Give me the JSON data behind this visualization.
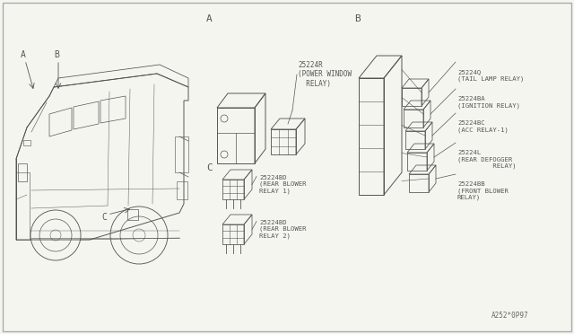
{
  "bg_color": "#f5f5f0",
  "line_color": "#555555",
  "watermark": "A252*0P97",
  "van": {
    "label_A": [
      0.055,
      0.865
    ],
    "label_B": [
      0.095,
      0.865
    ],
    "label_C": [
      0.175,
      0.335
    ]
  },
  "sec_A": {
    "label": [
      0.355,
      0.935
    ],
    "relay_label": "25224R\n(POWER WINDOW\n  RELAY)"
  },
  "sec_B": {
    "label": [
      0.615,
      0.935
    ]
  },
  "sec_C": {
    "label": [
      0.355,
      0.495
    ]
  },
  "b_relays": [
    "25224Q\n(TAIL LAMP RELAY)",
    "25224BA\n(IGNITION RELAY)",
    "25224BC\n(ACC RELAY-1)",
    "25224L\n(REAR DEFOGGER\n         RELAY)",
    "25224BB\n(FRONT BLOWER\nRELAY)"
  ],
  "c_relays": [
    "25224BD\n(REAR BLOWER\nRELAY 1)",
    "25224BD\n(REAR BLOWER\nRELAY 2)"
  ]
}
